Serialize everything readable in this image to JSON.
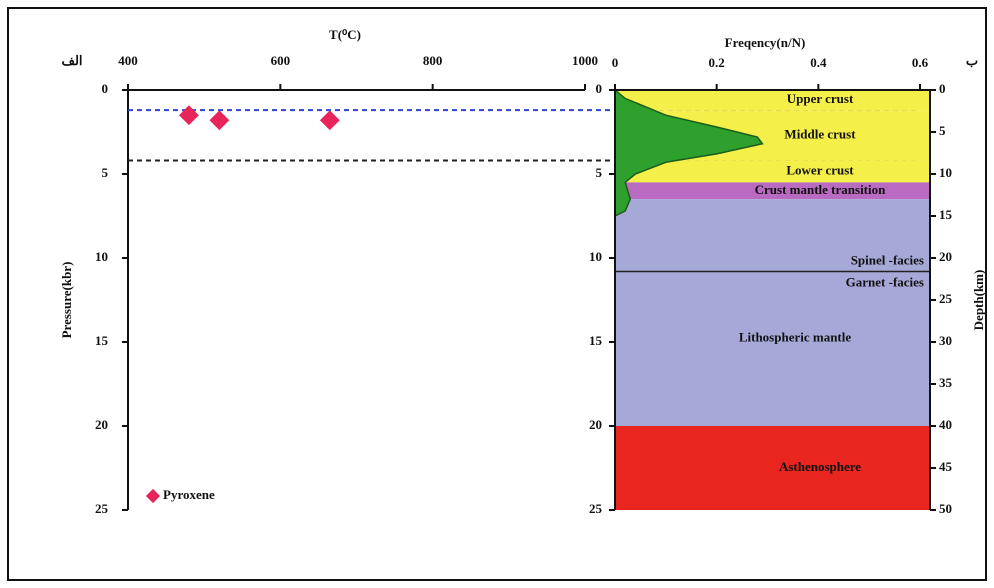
{
  "chart_data": [
    {
      "type": "scatter",
      "title": "T(⁰C)",
      "ylabel": "Pressure(kbr)",
      "panel_label": "الف",
      "xlim": [
        400,
        1000
      ],
      "xticks": [
        400,
        600,
        800,
        1000
      ],
      "ylim": [
        0,
        25
      ],
      "yticks": [
        0,
        5,
        10,
        15,
        20,
        25
      ],
      "series": [
        {
          "name": "Pyroxene",
          "color": "#e8245a",
          "x": [
            480,
            520,
            665
          ],
          "values": [
            1.5,
            1.8,
            1.8
          ]
        }
      ],
      "hlines": [
        {
          "value": 1.2,
          "color": "#3344cc"
        },
        {
          "value": 4.2,
          "color": "#222222"
        }
      ]
    },
    {
      "type": "layers",
      "title": "Freqency(n/N)",
      "y2label": "Depth(km)",
      "panel_label": "ب",
      "xlim": [
        0,
        0.6
      ],
      "xticks": [
        0,
        0.2,
        0.4,
        0.6
      ],
      "ylim": [
        0,
        25
      ],
      "yticks": [
        0,
        5,
        10,
        15,
        20,
        25
      ],
      "y2lim": [
        0,
        50
      ],
      "y2ticks": [
        0,
        5,
        10,
        15,
        20,
        25,
        30,
        35,
        40,
        45,
        50
      ],
      "layers": [
        {
          "name": "Upper crust",
          "from": 0,
          "to": 1.2,
          "color": "#f5ef4a"
        },
        {
          "name": "Middle crust",
          "from": 1.2,
          "to": 4.2,
          "color": "#f5ef4a"
        },
        {
          "name": "Lower crust",
          "from": 4.2,
          "to": 5.5,
          "color": "#f5ef4a"
        },
        {
          "name": "Crust mantle transition",
          "from": 5.5,
          "to": 6.5,
          "color": "#b86bc0"
        },
        {
          "name": "Spinel -facies",
          "from": 6.5,
          "to": 10.8,
          "color": "#a6a8d8"
        },
        {
          "name": "Garnet -facies",
          "from": 10.8,
          "to": 20,
          "color": "#a6a8d8"
        },
        {
          "name": "Asthenosphere",
          "from": 20,
          "to": 25,
          "color": "#e8251f"
        }
      ],
      "annotation": "Lithospheric mantle",
      "curve": {
        "color": "#2da02d",
        "y": [
          0,
          0.5,
          1.5,
          2.2,
          2.8,
          3.2,
          3.8,
          4.3,
          5,
          5.5,
          6.5,
          7.2,
          7.5,
          10
        ],
        "values": [
          0,
          0.02,
          0.1,
          0.2,
          0.28,
          0.29,
          0.2,
          0.1,
          0.04,
          0.02,
          0.03,
          0.02,
          0,
          0
        ]
      }
    }
  ]
}
